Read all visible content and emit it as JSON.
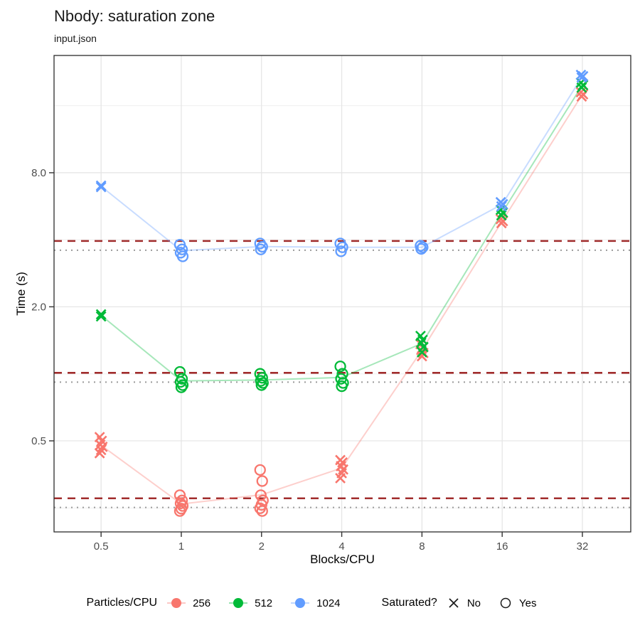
{
  "chart_data": {
    "type": "scatter",
    "title": "Nbody: saturation zone",
    "subtitle": "input.json",
    "xlabel": "Blocks/CPU",
    "ylabel": "Time (s)",
    "x_scale": "log2",
    "y_scale": "log10",
    "xlim": [
      0.333,
      48.6
    ],
    "ylim": [
      0.195,
      26.9
    ],
    "x_ticks": [
      0.5,
      1,
      2,
      4,
      8,
      16,
      32
    ],
    "x_tick_labels": [
      "0.5",
      "1",
      "2",
      "4",
      "8",
      "16",
      "32"
    ],
    "y_ticks": [
      0.5,
      2.0,
      8.0
    ],
    "y_tick_labels": [
      "0.5",
      "2.0",
      "8.0"
    ],
    "y_minor_gridlines": [
      0.25,
      1,
      4,
      16
    ],
    "grid": true,
    "threshold_line_color": "#A12D2D",
    "baseline_line_color": "#9A9A9A",
    "series": [
      {
        "name": "256",
        "color": "#F8766D",
        "baseline_dotted": 0.251,
        "threshold_dashed": 0.276,
        "points": [
          {
            "x": 0.5,
            "saturated": false,
            "reps": [
              0.52,
              0.5,
              0.48,
              0.47,
              0.455,
              0.44
            ]
          },
          {
            "x": 1,
            "saturated": true,
            "reps": [
              0.285,
              0.27,
              0.262,
              0.255,
              0.248,
              0.242
            ]
          },
          {
            "x": 2,
            "saturated": true,
            "reps": [
              0.37,
              0.33,
              0.285,
              0.27,
              0.258,
              0.249,
              0.242
            ]
          },
          {
            "x": 4,
            "saturated": false,
            "reps": [
              0.41,
              0.4,
              0.385,
              0.372,
              0.358,
              0.34
            ]
          },
          {
            "x": 8,
            "saturated": false,
            "reps": [
              1.36,
              1.31,
              1.28,
              1.24,
              1.2
            ]
          },
          {
            "x": 16,
            "saturated": false,
            "reps": [
              4.95,
              4.85,
              4.75
            ]
          },
          {
            "x": 32,
            "saturated": false,
            "reps": [
              18.4,
              18.0,
              17.6
            ]
          }
        ]
      },
      {
        "name": "512",
        "color": "#00BA38",
        "baseline_dotted": 0.918,
        "threshold_dashed": 1.01,
        "points": [
          {
            "x": 0.5,
            "saturated": false,
            "reps": [
              1.85,
              1.81
            ]
          },
          {
            "x": 1,
            "saturated": true,
            "reps": [
              1.02,
              0.95,
              0.92,
              0.89,
              0.87
            ]
          },
          {
            "x": 2,
            "saturated": true,
            "reps": [
              1.0,
              0.96,
              0.93,
              0.91,
              0.89
            ]
          },
          {
            "x": 4,
            "saturated": true,
            "reps": [
              1.08,
              1.0,
              0.95,
              0.91,
              0.88
            ]
          },
          {
            "x": 8,
            "saturated": false,
            "reps": [
              1.48,
              1.42,
              1.38,
              1.32,
              1.25
            ]
          },
          {
            "x": 16,
            "saturated": false,
            "reps": [
              5.45,
              5.3,
              5.15
            ]
          },
          {
            "x": 32,
            "saturated": false,
            "reps": [
              20.3,
              19.8,
              19.3
            ]
          }
        ]
      },
      {
        "name": "1024",
        "color": "#619CFF",
        "baseline_dotted": 3.59,
        "threshold_dashed": 3.95,
        "points": [
          {
            "x": 0.5,
            "saturated": false,
            "reps": [
              7.0,
              6.9
            ]
          },
          {
            "x": 1,
            "saturated": true,
            "reps": [
              3.8,
              3.62,
              3.5,
              3.37
            ]
          },
          {
            "x": 2,
            "saturated": true,
            "reps": [
              3.85,
              3.72,
              3.62
            ]
          },
          {
            "x": 4,
            "saturated": true,
            "reps": [
              3.85,
              3.7,
              3.55
            ]
          },
          {
            "x": 8,
            "saturated": true,
            "reps": [
              3.76,
              3.7,
              3.64
            ]
          },
          {
            "x": 16,
            "saturated": false,
            "reps": [
              5.9,
              5.78,
              5.65
            ]
          },
          {
            "x": 32,
            "saturated": false,
            "reps": [
              22.0,
              21.7,
              21.4
            ]
          }
        ]
      }
    ],
    "legend": {
      "color_title": "Particles/CPU",
      "shape_title": "Saturated?",
      "shape_items": [
        {
          "shape": "x",
          "label": "No"
        },
        {
          "shape": "circle",
          "label": "Yes"
        }
      ]
    }
  }
}
